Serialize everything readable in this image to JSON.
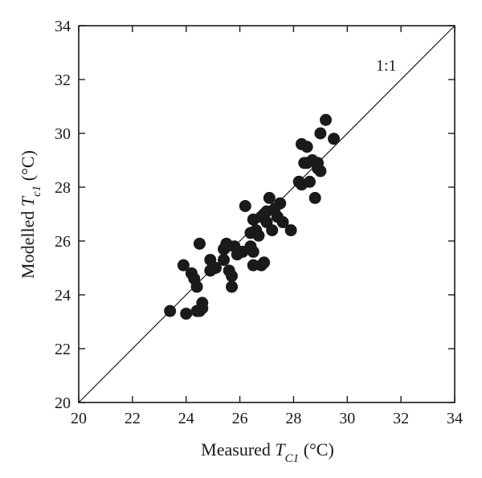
{
  "chart_data": {
    "type": "scatter",
    "xlabel": {
      "prefix": "Measured ",
      "var": "T",
      "sub": "C1",
      "suffix": " (°C)"
    },
    "ylabel": {
      "prefix": "Modelled ",
      "var": "T",
      "sub": "c1",
      "suffix": " (°C)"
    },
    "xlim": [
      20,
      34
    ],
    "ylim": [
      20,
      34
    ],
    "xticks": [
      20,
      22,
      24,
      26,
      28,
      30,
      32,
      34
    ],
    "yticks": [
      20,
      22,
      24,
      26,
      28,
      30,
      32,
      34
    ],
    "grid": false,
    "legend": false,
    "reference_line": {
      "label": "1:1",
      "from": [
        20,
        20
      ],
      "to": [
        34,
        34
      ]
    },
    "marker_color": "#1a1a1a",
    "x": [
      23.4,
      23.9,
      24.0,
      24.2,
      24.3,
      24.4,
      24.4,
      24.5,
      24.6,
      24.6,
      24.5,
      24.9,
      24.9,
      25.1,
      25.4,
      25.4,
      25.5,
      25.6,
      25.7,
      25.7,
      25.8,
      25.9,
      26.1,
      26.2,
      26.4,
      26.4,
      26.5,
      26.5,
      26.5,
      26.6,
      26.7,
      26.8,
      26.8,
      26.9,
      26.9,
      27.0,
      27.0,
      27.1,
      27.2,
      27.3,
      27.4,
      27.5,
      27.6,
      27.9,
      28.2,
      28.3,
      28.3,
      28.4,
      28.5,
      28.5,
      28.6,
      28.7,
      28.8,
      28.9,
      28.9,
      29.0,
      29.0,
      29.2,
      29.5
    ],
    "y": [
      23.4,
      25.1,
      23.3,
      24.8,
      24.6,
      24.3,
      23.4,
      25.9,
      23.5,
      23.7,
      23.4,
      25.3,
      24.9,
      25.0,
      25.7,
      25.3,
      25.9,
      24.9,
      24.3,
      24.7,
      25.8,
      25.5,
      25.6,
      27.3,
      26.3,
      25.8,
      25.1,
      25.6,
      26.8,
      26.4,
      26.2,
      25.1,
      26.9,
      27.0,
      25.2,
      27.1,
      26.7,
      27.6,
      26.4,
      27.2,
      26.9,
      27.4,
      26.7,
      26.4,
      28.2,
      29.6,
      28.1,
      28.9,
      29.5,
      28.9,
      28.2,
      29.0,
      27.6,
      28.7,
      28.9,
      30.0,
      28.6,
      30.5,
      29.8
    ]
  }
}
